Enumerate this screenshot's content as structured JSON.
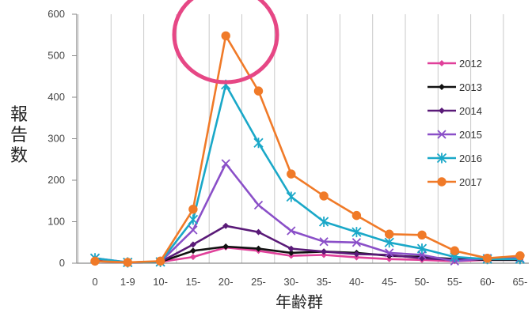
{
  "chart_data": {
    "type": "line",
    "title": "",
    "xlabel": "年齢群",
    "ylabel": "報告数",
    "ylim": [
      0,
      600
    ],
    "yticks": [
      0,
      100,
      200,
      300,
      400,
      500,
      600
    ],
    "grid": "vertical",
    "legend_position": "right",
    "categories": [
      "0",
      "1-9",
      "10-",
      "15-",
      "20-",
      "25-",
      "30-",
      "35-",
      "40-",
      "45-",
      "50-",
      "55-",
      "60-",
      "65-"
    ],
    "series": [
      {
        "name": "2012",
        "color": "#e0409a",
        "marker": "diamond",
        "values": [
          5,
          2,
          3,
          15,
          38,
          30,
          18,
          20,
          14,
          10,
          8,
          5,
          8,
          8
        ]
      },
      {
        "name": "2013",
        "color": "#111111",
        "marker": "diamond",
        "values": [
          8,
          2,
          3,
          30,
          40,
          35,
          25,
          28,
          25,
          18,
          15,
          10,
          8,
          8
        ]
      },
      {
        "name": "2014",
        "color": "#5a1a78",
        "marker": "diamond",
        "values": [
          10,
          2,
          3,
          45,
          90,
          75,
          35,
          28,
          22,
          20,
          12,
          8,
          10,
          10
        ]
      },
      {
        "name": "2015",
        "color": "#8a4fc8",
        "marker": "cross",
        "values": [
          12,
          2,
          3,
          80,
          240,
          140,
          78,
          52,
          50,
          25,
          20,
          5,
          12,
          12
        ]
      },
      {
        "name": "2016",
        "color": "#1aa8c8",
        "marker": "star",
        "values": [
          12,
          2,
          3,
          105,
          430,
          290,
          160,
          100,
          75,
          50,
          35,
          15,
          10,
          10
        ]
      },
      {
        "name": "2017",
        "color": "#f07a28",
        "marker": "circle",
        "values": [
          5,
          2,
          5,
          130,
          548,
          415,
          215,
          162,
          115,
          70,
          68,
          30,
          12,
          18
        ]
      }
    ]
  }
}
